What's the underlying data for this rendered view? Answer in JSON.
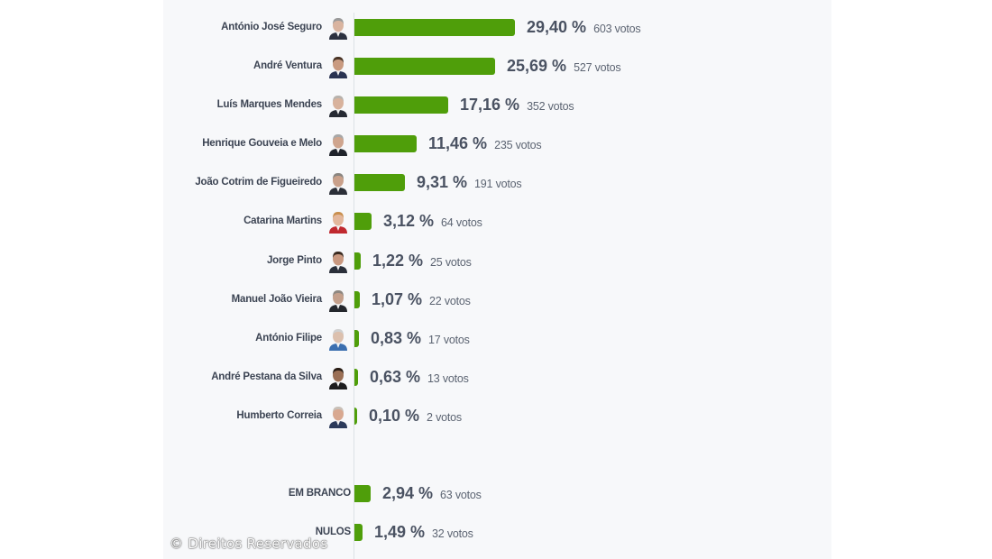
{
  "chart_data": {
    "type": "bar",
    "orientation": "horizontal",
    "title": "",
    "xlabel": "",
    "ylabel": "",
    "bar_color": "#4f9e0a",
    "grid": false,
    "legend": null,
    "categories": [
      "António José Seguro",
      "André Ventura",
      "Luís Marques Mendes",
      "Henrique Gouveia e Melo",
      "João Cotrim de Figueiredo",
      "Catarina Martins",
      "Jorge Pinto",
      "Manuel João Vieira",
      "António Filipe",
      "André Pestana da Silva",
      "Humberto Correia",
      "EM BRANCO",
      "NULOS"
    ],
    "values": [
      29.4,
      25.69,
      17.16,
      11.46,
      9.31,
      3.12,
      1.22,
      1.07,
      0.83,
      0.63,
      0.1,
      2.94,
      1.49
    ],
    "votes": [
      603,
      527,
      352,
      235,
      191,
      64,
      25,
      22,
      17,
      13,
      2,
      63,
      32
    ],
    "value_unit": "%"
  },
  "candidates": [
    {
      "name": "António José Seguro",
      "pct": "29,40 %",
      "votes": "603 votos",
      "value": 29.4,
      "avatar_skin": "#d9b4a0",
      "avatar_hair": "#9a9a9a",
      "avatar_suit": "#2c3140"
    },
    {
      "name": "André Ventura",
      "pct": "25,69 %",
      "votes": "527 votos",
      "value": 25.69,
      "avatar_skin": "#c99a80",
      "avatar_hair": "#4a3426",
      "avatar_suit": "#2a3352"
    },
    {
      "name": "Luís Marques Mendes",
      "pct": "17,16 %",
      "votes": "352 votos",
      "value": 17.16,
      "avatar_skin": "#d8b29c",
      "avatar_hair": "#b7b2ad",
      "avatar_suit": "#262a33"
    },
    {
      "name": "Henrique Gouveia e Melo",
      "pct": "11,46 %",
      "votes": "235 votos",
      "value": 11.46,
      "avatar_skin": "#cfa58e",
      "avatar_hair": "#a8a8a8",
      "avatar_suit": "#1f232b"
    },
    {
      "name": "João Cotrim de Figueiredo",
      "pct": "9,31 %",
      "votes": "191 votos",
      "value": 9.31,
      "avatar_skin": "#c9a08a",
      "avatar_hair": "#8a8580",
      "avatar_suit": "#2b2f38"
    },
    {
      "name": "Catarina Martins",
      "pct": "3,12 %",
      "votes": "64 votos",
      "value": 3.12,
      "avatar_skin": "#e3b79c",
      "avatar_hair": "#c98f4e",
      "avatar_suit": "#c0292f"
    },
    {
      "name": "Jorge Pinto",
      "pct": "1,22 %",
      "votes": "25 votos",
      "value": 1.22,
      "avatar_skin": "#c99880",
      "avatar_hair": "#3a2a20",
      "avatar_suit": "#2a2f3a"
    },
    {
      "name": "Manuel João Vieira",
      "pct": "1,07 %",
      "votes": "22 votos",
      "value": 1.07,
      "avatar_skin": "#c4a08c",
      "avatar_hair": "#8e8780",
      "avatar_suit": "#24272d"
    },
    {
      "name": "António Filipe",
      "pct": "0,83 %",
      "votes": "17 votos",
      "value": 0.83,
      "avatar_skin": "#dcc0ae",
      "avatar_hair": "#d0d0d0",
      "avatar_suit": "#3b6fb0"
    },
    {
      "name": "André Pestana da Silva",
      "pct": "0,63 %",
      "votes": "13 votos",
      "value": 0.63,
      "avatar_skin": "#9a6f55",
      "avatar_hair": "#2a1e16",
      "avatar_suit": "#1c1c1e"
    },
    {
      "name": "Humberto Correia",
      "pct": "0,10 %",
      "votes": "2 votos",
      "value": 0.1,
      "avatar_skin": "#d8a890",
      "avatar_hair": "#c8c0b8",
      "avatar_suit": "#2c3a5a"
    }
  ],
  "others": [
    {
      "name": "EM BRANCO",
      "pct": "2,94 %",
      "votes": "63 votos",
      "value": 2.94
    },
    {
      "name": "NULOS",
      "pct": "1,49 %",
      "votes": "32 votos",
      "value": 1.49
    }
  ],
  "footer": {
    "copyright": "© Direitos Reservados"
  }
}
